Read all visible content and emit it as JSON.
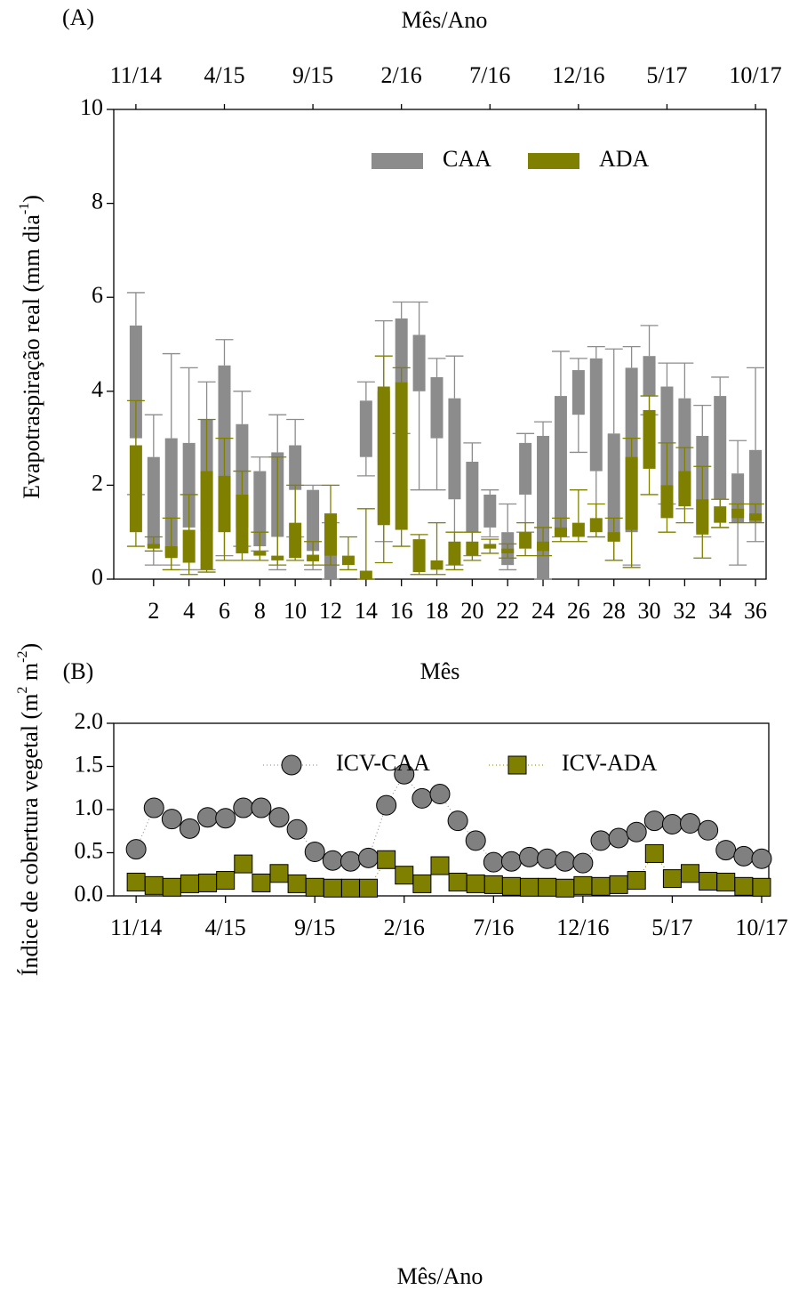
{
  "chart_data": [
    {
      "type": "box",
      "panel_label": "(A)",
      "x2label": "Mês/Ano",
      "xlabel": "Mês",
      "ylabel": [
        "Evapotraspiração real (mm dia",
        "-1",
        ")"
      ],
      "xlim": [
        -0.25,
        36.6
      ],
      "ylim": [
        0,
        10
      ],
      "yticks": [
        0,
        2,
        4,
        6,
        8,
        10
      ],
      "xticks": [
        2,
        4,
        6,
        8,
        10,
        12,
        14,
        16,
        18,
        20,
        22,
        24,
        26,
        28,
        30,
        32,
        34,
        36
      ],
      "x2ticks": [
        {
          "value": 1,
          "label": "11/14"
        },
        {
          "value": 6,
          "label": "4/15"
        },
        {
          "value": 11,
          "label": "9/15"
        },
        {
          "value": 16,
          "label": "2/16"
        },
        {
          "value": 21,
          "label": "7/16"
        },
        {
          "value": 26,
          "label": "12/16"
        },
        {
          "value": 31,
          "label": "5/17"
        },
        {
          "value": 36,
          "label": "10/17"
        }
      ],
      "x": [
        1,
        2,
        3,
        4,
        5,
        6,
        7,
        8,
        9,
        10,
        11,
        12,
        13,
        14,
        15,
        16,
        17,
        18,
        19,
        20,
        21,
        22,
        23,
        24,
        25,
        26,
        27,
        28,
        29,
        30,
        31,
        32,
        33,
        34,
        35,
        36
      ],
      "series": [
        {
          "name": "CAA",
          "color": "#8c8c8c",
          "min": [
            1.8,
            0.3,
            0.3,
            0.2,
            0.2,
            0.5,
            0.7,
            0.6,
            0.2,
            0.9,
            0.2,
            0,
            null,
            2.2,
            0.8,
            3.1,
            1.9,
            1.9,
            0.3,
            0.5,
            0.9,
            0.2,
            1.0,
            0,
            0.9,
            2.7,
            0.9,
            0.4,
            0.3,
            3.5,
            1.6,
            1.5,
            0.9,
            1.1,
            0.3,
            0.8
          ],
          "q1": [
            3.0,
            0.7,
            0.5,
            1.1,
            1.0,
            1.5,
            1.1,
            0.7,
            0.9,
            1.9,
            0.6,
            0,
            null,
            2.6,
            1.2,
            4.2,
            4.0,
            3.0,
            1.7,
            1.0,
            1.1,
            0.3,
            1.8,
            0,
            0.95,
            3.5,
            2.3,
            0.8,
            1.0,
            3.9,
            1.9,
            1.7,
            1.0,
            1.7,
            1.2,
            1.2
          ],
          "q3": [
            5.4,
            2.6,
            3.0,
            2.9,
            3.4,
            4.55,
            3.3,
            2.3,
            2.7,
            2.85,
            1.9,
            0.55,
            null,
            3.8,
            4.0,
            5.55,
            5.2,
            4.3,
            3.85,
            2.5,
            1.8,
            1.0,
            2.9,
            3.05,
            3.9,
            4.45,
            4.7,
            3.1,
            4.5,
            4.75,
            4.1,
            3.85,
            3.05,
            3.9,
            2.25,
            2.75
          ],
          "max": [
            6.1,
            3.5,
            4.8,
            4.5,
            4.2,
            5.1,
            4.0,
            2.6,
            3.5,
            3.4,
            2.0,
            1.2,
            null,
            4.2,
            5.5,
            5.9,
            5.9,
            4.7,
            4.75,
            2.9,
            1.9,
            1.6,
            3.1,
            3.35,
            4.85,
            4.7,
            4.95,
            4.9,
            4.95,
            5.4,
            4.6,
            4.6,
            3.7,
            4.3,
            2.95,
            4.5
          ]
        },
        {
          "name": "ADA",
          "color": "#7f7f00",
          "min": [
            0.7,
            0.6,
            0.2,
            0.1,
            0.15,
            0.4,
            0.4,
            0.4,
            0.3,
            0.4,
            0.3,
            0.3,
            0.2,
            0,
            0.35,
            0.7,
            0.1,
            0.1,
            0.2,
            0.4,
            0.55,
            0.45,
            0.5,
            0.5,
            0.8,
            0.8,
            0.9,
            0.4,
            0.25,
            1.8,
            1.0,
            1.2,
            0.45,
            1.1,
            1.2,
            1.2
          ],
          "q1": [
            1.0,
            0.65,
            0.45,
            0.35,
            0.2,
            1.0,
            0.55,
            0.5,
            0.4,
            0.45,
            0.38,
            0.5,
            0.3,
            0,
            1.15,
            1.05,
            0.15,
            0.2,
            0.3,
            0.5,
            0.65,
            0.55,
            0.65,
            0.6,
            0.9,
            0.9,
            1.0,
            0.8,
            1.05,
            2.35,
            1.3,
            1.55,
            0.95,
            1.2,
            1.3,
            1.25
          ],
          "q3": [
            2.85,
            0.75,
            0.7,
            1.05,
            2.3,
            2.2,
            1.8,
            0.6,
            0.5,
            1.2,
            0.52,
            1.4,
            0.5,
            0.18,
            4.1,
            4.2,
            0.85,
            0.4,
            0.8,
            0.8,
            0.75,
            0.65,
            1.0,
            0.8,
            1.1,
            1.2,
            1.3,
            1.0,
            2.6,
            3.6,
            2.0,
            2.3,
            1.7,
            1.55,
            1.5,
            1.4
          ],
          "max": [
            3.8,
            0.9,
            1.3,
            1.8,
            3.4,
            3.0,
            2.3,
            1.0,
            2.6,
            2.0,
            0.8,
            2.0,
            0.9,
            1.5,
            4.75,
            4.5,
            0.95,
            1.2,
            1.0,
            1.0,
            0.85,
            0.75,
            1.2,
            1.1,
            1.3,
            1.9,
            1.6,
            1.3,
            3.0,
            3.9,
            2.9,
            2.8,
            2.4,
            1.7,
            1.6,
            1.6
          ]
        }
      ]
    },
    {
      "type": "line",
      "panel_label": "(B)",
      "xlabel": "Mês/Ano",
      "ylabel": [
        "Índice de cobertura vegetal (m",
        "2",
        " m",
        "-2",
        ")"
      ],
      "xlim": [
        -0.25,
        36.4
      ],
      "ylim": [
        0,
        2
      ],
      "yticks": [
        {
          "value": 0,
          "label": "0.0"
        },
        0.5,
        {
          "value": 1,
          "label": "1.0"
        },
        1.5,
        {
          "value": 2,
          "label": "2.0"
        }
      ],
      "xticks": [
        {
          "value": 1,
          "label": "11/14"
        },
        {
          "value": 6,
          "label": "4/15"
        },
        {
          "value": 11,
          "label": "9/15"
        },
        {
          "value": 16,
          "label": "2/16"
        },
        {
          "value": 21,
          "label": "7/16"
        },
        {
          "value": 26,
          "label": "12/16"
        },
        {
          "value": 31,
          "label": "5/17"
        },
        {
          "value": 36,
          "label": "10/17"
        }
      ],
      "x": [
        1,
        2,
        3,
        4,
        5,
        6,
        7,
        8,
        9,
        10,
        11,
        12,
        13,
        14,
        15,
        16,
        17,
        18,
        19,
        20,
        21,
        22,
        23,
        24,
        25,
        26,
        27,
        28,
        29,
        30,
        31,
        32,
        33,
        34,
        35,
        36
      ],
      "series": [
        {
          "name": "ICV-CAA",
          "color": "#808080",
          "marker": "circle",
          "values": [
            0.54,
            1.02,
            0.89,
            0.78,
            0.91,
            0.9,
            1.02,
            1.02,
            0.91,
            0.77,
            0.51,
            0.41,
            0.4,
            0.44,
            1.05,
            1.41,
            1.13,
            1.18,
            0.87,
            0.64,
            0.39,
            0.4,
            0.45,
            0.43,
            0.4,
            0.38,
            0.64,
            0.67,
            0.74,
            0.87,
            0.83,
            0.84,
            0.76,
            0.53,
            0.46,
            0.43
          ]
        },
        {
          "name": "ICV-ADA",
          "color": "#7f7f00",
          "marker": "square",
          "values": [
            0.16,
            0.12,
            0.1,
            0.14,
            0.15,
            0.18,
            0.37,
            0.15,
            0.26,
            0.14,
            0.1,
            0.09,
            0.09,
            0.09,
            0.42,
            0.24,
            0.14,
            0.35,
            0.16,
            0.14,
            0.13,
            0.11,
            0.1,
            0.1,
            0.09,
            0.12,
            0.11,
            0.13,
            0.18,
            0.49,
            0.2,
            0.26,
            0.17,
            0.16,
            0.11,
            0.1
          ]
        }
      ]
    }
  ]
}
